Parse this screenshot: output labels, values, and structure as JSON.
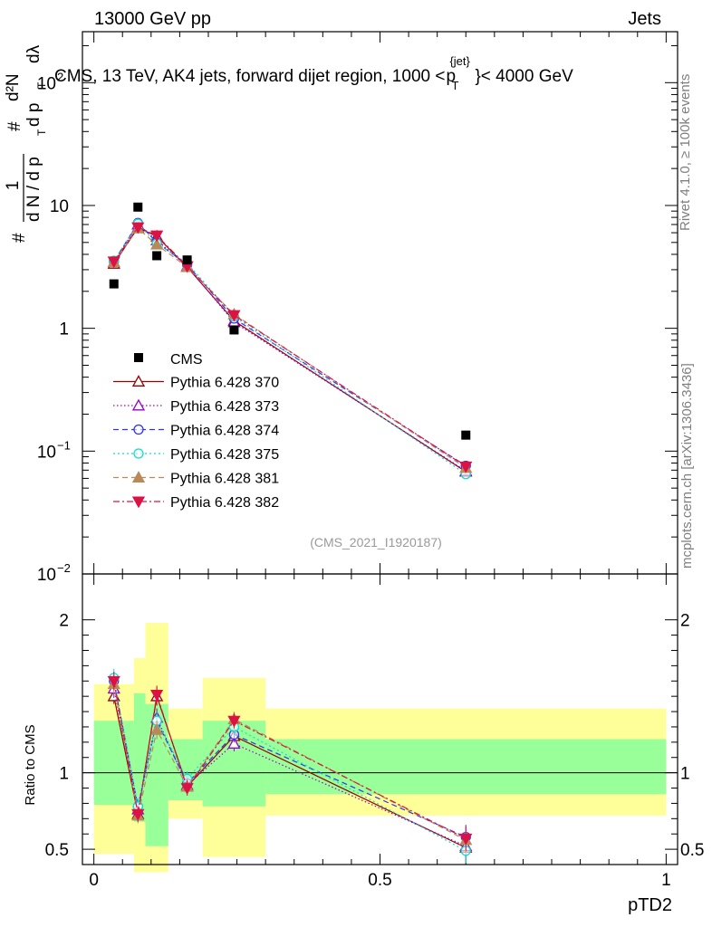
{
  "header": {
    "left": "13000 GeV pp",
    "right": "Jets"
  },
  "side_labels": {
    "rivet": "Rivet 4.1.0, ≥ 100k events",
    "site": "mcplots.cern.ch [arXiv:1306.3436]"
  },
  "chart_data": {
    "type": "line",
    "x_label": "pTD2",
    "title": "CMS, 13 TeV, AK4 jets, forward dijet region, 1000 <p_T^{jet}< 4000 GeV",
    "analysis_id": "(CMS_2021_I1920187)",
    "upper": {
      "y_scale": "log",
      "ylim": [
        0.01,
        260
      ],
      "y_ticks": [
        {
          "value": 0.01,
          "base": "10",
          "exp": "−2"
        },
        {
          "value": 0.1,
          "base": "10",
          "exp": "−1"
        },
        {
          "value": 1,
          "base": "1",
          "exp": ""
        },
        {
          "value": 10,
          "base": "10",
          "exp": ""
        },
        {
          "value": 100,
          "base": "10",
          "exp": "2"
        }
      ],
      "y_label_parts": {
        "hash1": "#",
        "frac_num": "1",
        "frac_den": "d N / d p",
        "frac_den_sub": "T",
        "hash2": "#",
        "d2n": "d²N",
        "dpt": "d p",
        "dpt_sub": "T",
        "dlambda": "dλ"
      }
    },
    "lower": {
      "y_label": "Ratio to CMS",
      "ylim": [
        0.4,
        2.3
      ],
      "y_ticks": [
        {
          "value": 0.5,
          "label": "0.5"
        },
        {
          "value": 1,
          "label": "1"
        },
        {
          "value": 2,
          "label": "2"
        }
      ]
    },
    "xlim": [
      -0.02,
      1.02
    ],
    "x_ticks": [
      {
        "value": 0,
        "label": "0"
      },
      {
        "value": 0.5,
        "label": "0.5"
      },
      {
        "value": 1,
        "label": "1"
      }
    ],
    "bins": [
      {
        "lo": 0.0,
        "hi": 0.07,
        "x": 0.035
      },
      {
        "lo": 0.07,
        "hi": 0.09,
        "x": 0.077
      },
      {
        "lo": 0.09,
        "hi": 0.13,
        "x": 0.11
      },
      {
        "lo": 0.13,
        "hi": 0.19,
        "x": 0.163
      },
      {
        "lo": 0.19,
        "hi": 0.3,
        "x": 0.245
      },
      {
        "lo": 0.3,
        "hi": 1.0,
        "x": 0.65
      }
    ],
    "data": {
      "name": "CMS",
      "values": [
        2.3,
        9.7,
        3.9,
        3.6,
        0.97,
        0.135
      ],
      "band_yellow": [
        [
          0.47,
          1.58
        ],
        [
          0.35,
          1.75
        ],
        [
          0.35,
          1.98
        ],
        [
          0.7,
          1.42
        ],
        [
          0.45,
          1.62
        ],
        [
          0.72,
          1.42
        ]
      ],
      "band_green": [
        [
          0.79,
          1.34
        ],
        [
          0.68,
          1.52
        ],
        [
          0.52,
          1.45
        ],
        [
          0.82,
          1.22
        ],
        [
          0.78,
          1.34
        ],
        [
          0.86,
          1.22
        ]
      ]
    },
    "series": [
      {
        "name": "Pythia 6.428 370",
        "color": "#990000",
        "dash": "",
        "marker": "tri-up-open",
        "values": [
          3.35,
          6.6,
          5.6,
          3.15,
          1.15,
          0.068
        ],
        "ratio": [
          1.5,
          0.73,
          1.5,
          0.91,
          1.24,
          0.51
        ],
        "ratio_err": [
          0.05,
          0.05,
          0.06,
          0.05,
          0.05,
          0.08
        ]
      },
      {
        "name": "Pythia 6.428 373",
        "color": "#9900cc",
        "dash": "1.5,2.5",
        "marker": "tri-up-open",
        "values": [
          3.45,
          7.0,
          5.2,
          3.2,
          1.12,
          0.069
        ],
        "ratio": [
          1.55,
          0.76,
          1.36,
          0.92,
          1.19,
          0.52
        ],
        "ratio_err": [
          0.06,
          0.05,
          0.06,
          0.05,
          0.05,
          0.08
        ]
      },
      {
        "name": "Pythia 6.428 374",
        "color": "#3333ee",
        "dash": "6,4",
        "marker": "circ-open",
        "values": [
          3.5,
          7.2,
          5.0,
          3.3,
          1.2,
          0.076
        ],
        "ratio": [
          1.6,
          0.78,
          1.34,
          0.93,
          1.25,
          0.58
        ],
        "ratio_err": [
          0.06,
          0.05,
          0.06,
          0.05,
          0.05,
          0.08
        ]
      },
      {
        "name": "Pythia 6.428 375",
        "color": "#11ddcc",
        "dash": "2,3",
        "marker": "circ-open",
        "values": [
          3.55,
          7.1,
          4.9,
          3.4,
          1.25,
          0.065
        ],
        "ratio": [
          1.62,
          0.78,
          1.34,
          0.96,
          1.3,
          0.49
        ],
        "ratio_err": [
          0.06,
          0.05,
          0.06,
          0.05,
          0.05,
          0.08
        ]
      },
      {
        "name": "Pythia 6.428 381",
        "color": "#b88a5a",
        "dash": "6,4",
        "marker": "tri-up-filled",
        "values": [
          3.45,
          6.5,
          4.8,
          3.15,
          1.3,
          0.073
        ],
        "ratio": [
          1.58,
          0.72,
          1.28,
          0.91,
          1.35,
          0.56
        ],
        "ratio_err": [
          0.06,
          0.05,
          0.06,
          0.05,
          0.05,
          0.08
        ]
      },
      {
        "name": "Pythia 6.428 382",
        "color": "#dd1144",
        "dash": "7,3,2,3",
        "marker": "tri-down-filled",
        "values": [
          3.5,
          6.65,
          5.7,
          3.2,
          1.28,
          0.075
        ],
        "ratio": [
          1.6,
          0.73,
          1.51,
          0.9,
          1.34,
          0.57
        ],
        "ratio_err": [
          0.06,
          0.05,
          0.06,
          0.05,
          0.05,
          0.08
        ]
      }
    ]
  }
}
